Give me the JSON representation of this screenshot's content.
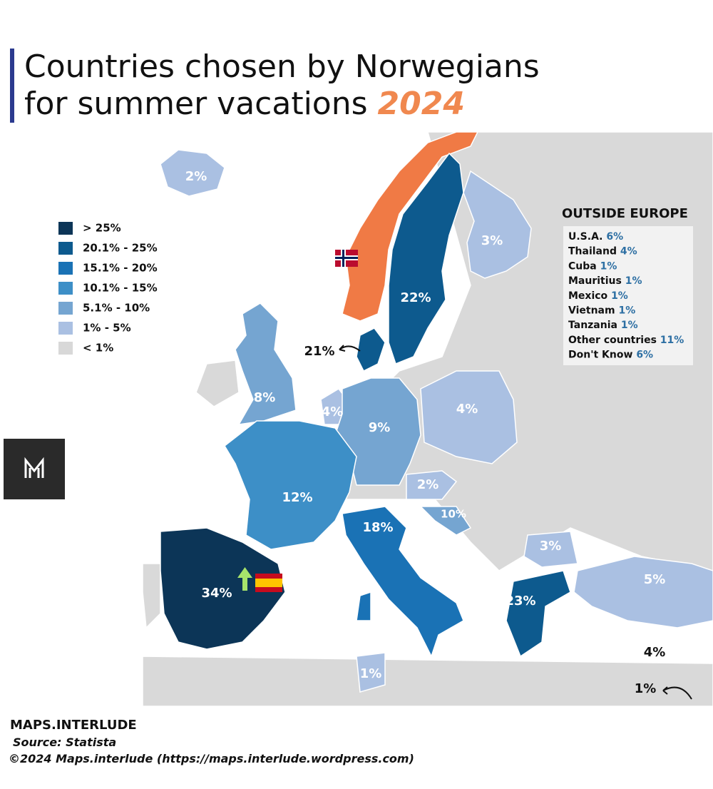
{
  "header": {
    "title": "Countries chosen by Norwegians for summer vacations",
    "title_year": "2024"
  },
  "legend": [
    {
      "label": "> 25%",
      "color": "#0c3557"
    },
    {
      "label": "20.1% - 25%",
      "color": "#0d5a8e"
    },
    {
      "label": "15.1% - 20%",
      "color": "#1a72b5"
    },
    {
      "label": "10.1% - 15%",
      "color": "#3d8fc7"
    },
    {
      "label": "5.1% - 10%",
      "color": "#75a5d1"
    },
    {
      "label": "1% - 5%",
      "color": "#aac0e2"
    },
    {
      "label": "< 1%",
      "color": "#d8d8d8"
    }
  ],
  "home_color": "#f07a45",
  "regions": [
    {
      "label": "2%",
      "color": "#aac0e2"
    },
    {
      "label": "3%",
      "color": "#aac0e2"
    },
    {
      "label": "22%",
      "color": "#0d5a8e"
    },
    {
      "label": "21%",
      "color": "#0d5a8e"
    },
    {
      "label": "8%",
      "color": "#75a5d1"
    },
    {
      "label": "4%",
      "color": "#aac0e2"
    },
    {
      "label": "9%",
      "color": "#75a5d1"
    },
    {
      "label": "4%",
      "color": "#aac0e2"
    },
    {
      "label": "12%",
      "color": "#3d8fc7"
    },
    {
      "label": "2%",
      "color": "#aac0e2"
    },
    {
      "label": "10%",
      "color": "#75a5d1"
    },
    {
      "label": "18%",
      "color": "#1a72b5"
    },
    {
      "label": "3%",
      "color": "#aac0e2"
    },
    {
      "label": "5%",
      "color": "#aac0e2"
    },
    {
      "label": "34%",
      "color": "#0c3557"
    },
    {
      "label": "23%",
      "color": "#0d5a8e"
    },
    {
      "label": "1%",
      "color": "#aac0e2"
    },
    {
      "label": "4%",
      "color": "#aac0e2"
    },
    {
      "label": "1%",
      "color": "#aac0e2"
    }
  ],
  "outside": {
    "heading": "OUTSIDE EUROPE",
    "items": [
      {
        "country": "U.S.A.",
        "value": "6%"
      },
      {
        "country": "Thailand",
        "value": "4%"
      },
      {
        "country": "Cuba",
        "value": "1%"
      },
      {
        "country": "Mauritius",
        "value": "1%"
      },
      {
        "country": "Mexico",
        "value": "1%"
      },
      {
        "country": "Vietnam",
        "value": "1%"
      },
      {
        "country": "Tanzania",
        "value": "1%"
      },
      {
        "country": "Other  countries",
        "value": "11%"
      },
      {
        "country": "Don't  Know",
        "value": "6%"
      }
    ]
  },
  "footer": {
    "brand": "MAPS.INTERLUDE",
    "source": "Source: Statista",
    "copyright": "©2024 Maps.interlude (https://maps.interlude.wordpress.com)"
  }
}
